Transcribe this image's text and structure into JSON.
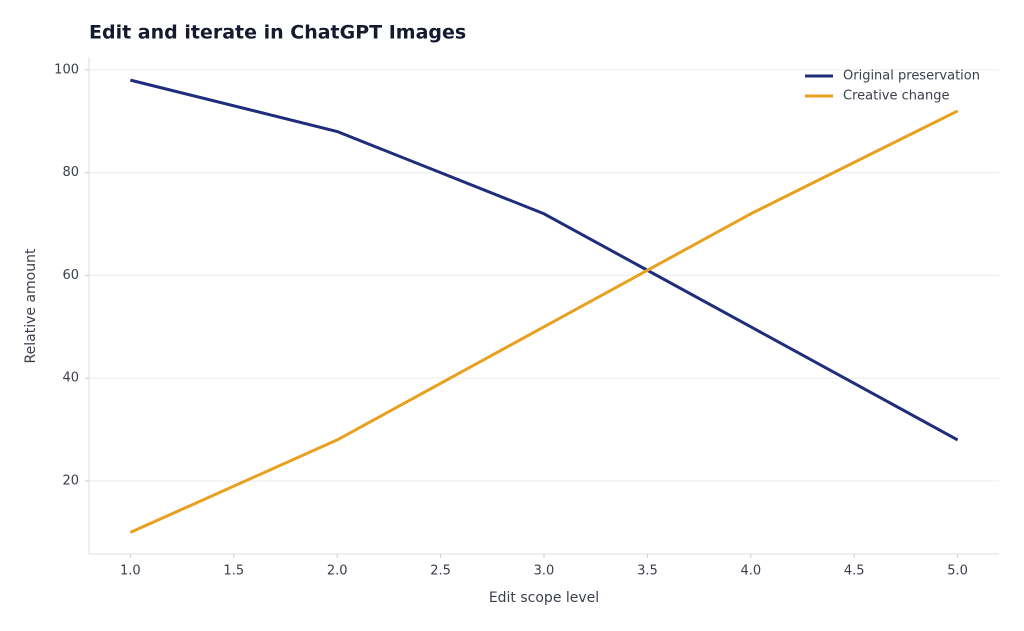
{
  "chart_data": {
    "type": "line",
    "title": "Edit and iterate in ChatGPT Images",
    "x_label": "Edit scope level",
    "y_label": "Relative amount",
    "x": [
      1,
      2,
      3,
      4,
      5
    ],
    "series": [
      {
        "name": "Original preservation",
        "color": "#1f2d7b",
        "values": [
          98,
          88,
          72,
          50,
          28
        ]
      },
      {
        "name": "Creative change",
        "color": "#e8a020",
        "values": [
          10,
          28,
          50,
          72,
          92
        ]
      }
    ],
    "xlim": [
      0.8,
      5.2
    ],
    "xticks": [
      {
        "value": 1,
        "label": "1.0"
      },
      {
        "value": 1.5,
        "label": "1.5"
      },
      {
        "value": 2,
        "label": "2.0"
      },
      {
        "value": 2.5,
        "label": "2.5"
      },
      {
        "value": 3,
        "label": "3.0"
      },
      {
        "value": 3.5,
        "label": "3.5"
      },
      {
        "value": 4,
        "label": "4.0"
      },
      {
        "value": 4.5,
        "label": "4.5"
      },
      {
        "value": 5,
        "label": "5.0"
      }
    ],
    "ylim": [
      5.8,
      102.5
    ],
    "yticks": [
      20,
      40,
      60,
      80,
      100
    ],
    "grid": true,
    "legend": "upper-right"
  }
}
